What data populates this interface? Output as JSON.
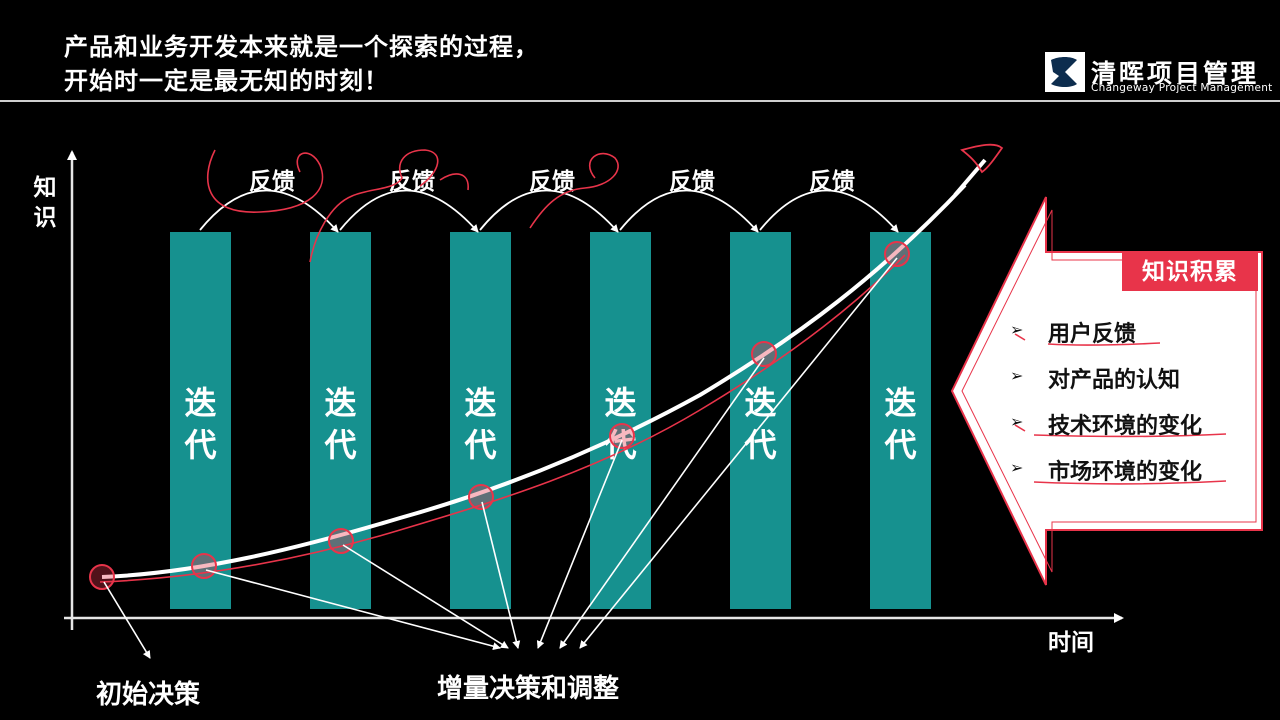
{
  "title": {
    "line1": "产品和业务开发本来就是一个探索的过程，",
    "line2": "开始时一定是最无知的时刻！"
  },
  "logo": {
    "name_cn": "清晖项目管理",
    "name_en": "Changeway Project Management"
  },
  "axes": {
    "y_label": "知识",
    "x_label": "时间"
  },
  "iteration_label": "迭代",
  "feedback_labels": [
    "反馈",
    "反馈",
    "反馈",
    "反馈",
    "反馈"
  ],
  "bottom": {
    "initial_decision": "初始决策",
    "incremental_decision": "增量决策和调整"
  },
  "knowledge_panel": {
    "badge": "知识积累",
    "items": [
      "用户反馈",
      "对产品的认知",
      "技术环境的变化",
      "市场环境的变化"
    ],
    "marker": "➢"
  },
  "colors": {
    "bar": "#16918f",
    "accent": "#e8344a",
    "background": "#000000",
    "panel": "#ffffff"
  }
}
